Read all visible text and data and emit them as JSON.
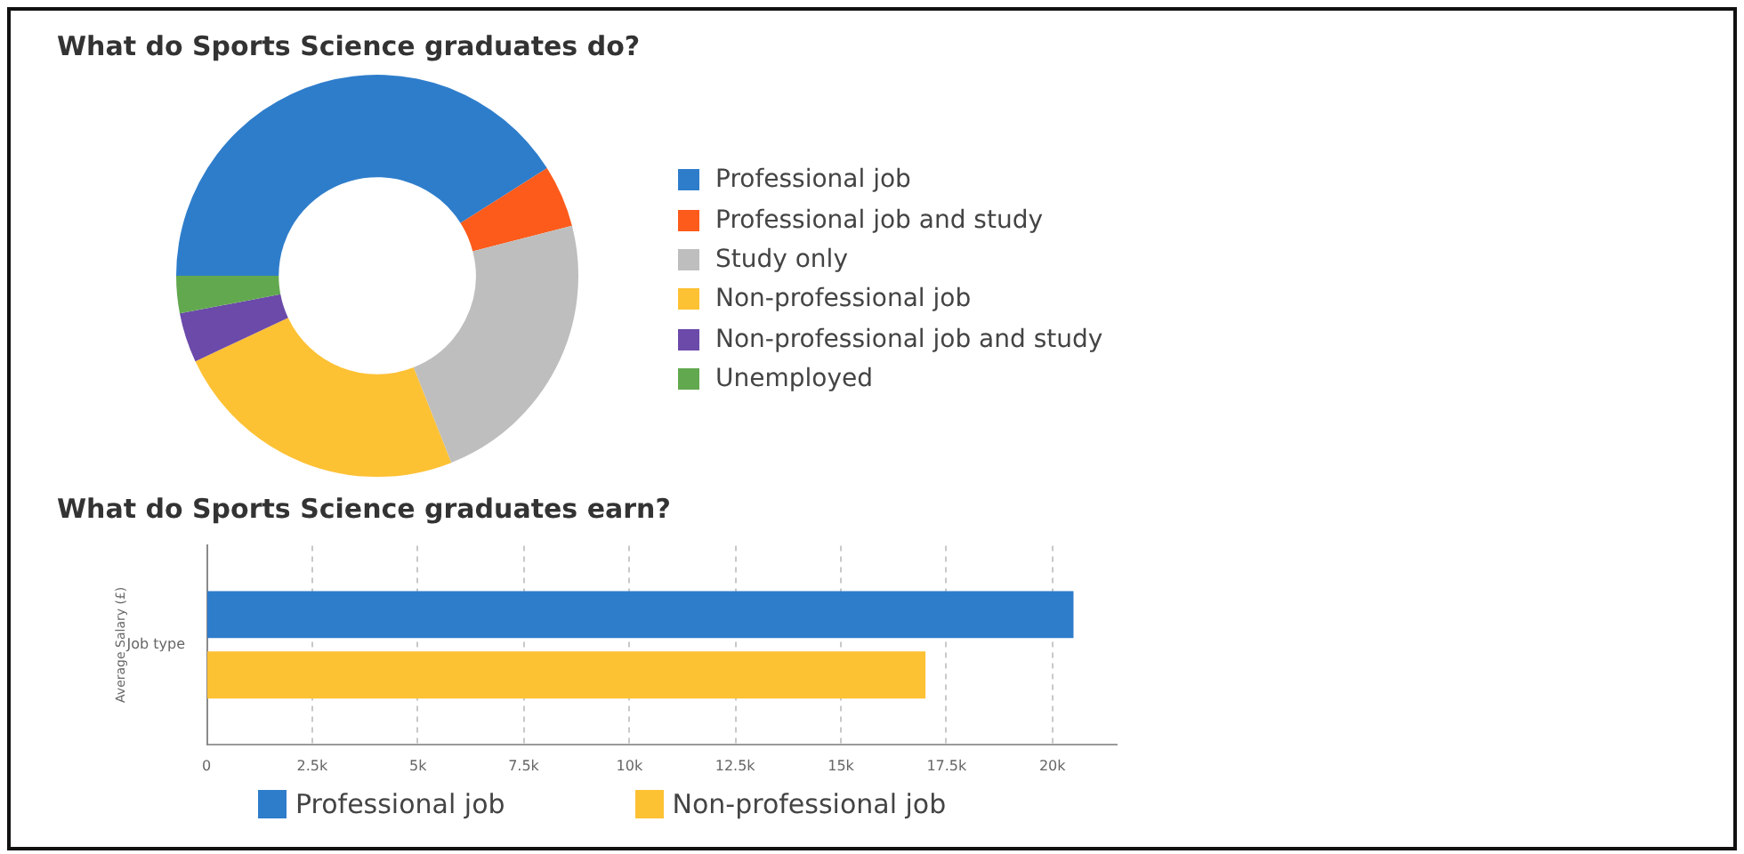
{
  "chart_data": [
    {
      "type": "donut",
      "title": "What do Sports Science graduates do?",
      "categories": [
        "Professional job",
        "Professional job and study",
        "Study only",
        "Non-professional job",
        "Non-professional job and study",
        "Unemployed"
      ],
      "values": [
        41,
        5,
        23,
        24,
        4,
        3
      ],
      "colors": [
        "#2e7dcb",
        "#fc5b1b",
        "#bebebe",
        "#fdc134",
        "#6b4aa9",
        "#62a84f"
      ],
      "legend": "right"
    },
    {
      "type": "bar",
      "title": "What do Sports Science graduates earn?",
      "orientation": "horizontal",
      "categories": [
        "Job type"
      ],
      "series": [
        {
          "name": "Professional job",
          "color": "#2e7dcb",
          "values": [
            20500
          ]
        },
        {
          "name": "Non-professional job",
          "color": "#fdc134",
          "values": [
            17000
          ]
        }
      ],
      "xlim": [
        0,
        21500
      ],
      "xticks": [
        0,
        {
          "value": 2500,
          "label": "2.5k"
        },
        {
          "value": 5000,
          "label": "5k"
        },
        {
          "value": 7500,
          "label": "7.5k"
        },
        {
          "value": 10000,
          "label": "10k"
        },
        {
          "value": 12500,
          "label": "12.5k"
        },
        {
          "value": 15000,
          "label": "15k"
        },
        {
          "value": 17500,
          "label": "17.5k"
        },
        {
          "value": 20000,
          "label": "20k"
        }
      ],
      "ylabel": "Average Salary (£)",
      "grid": "x",
      "legend": "bottom"
    }
  ]
}
